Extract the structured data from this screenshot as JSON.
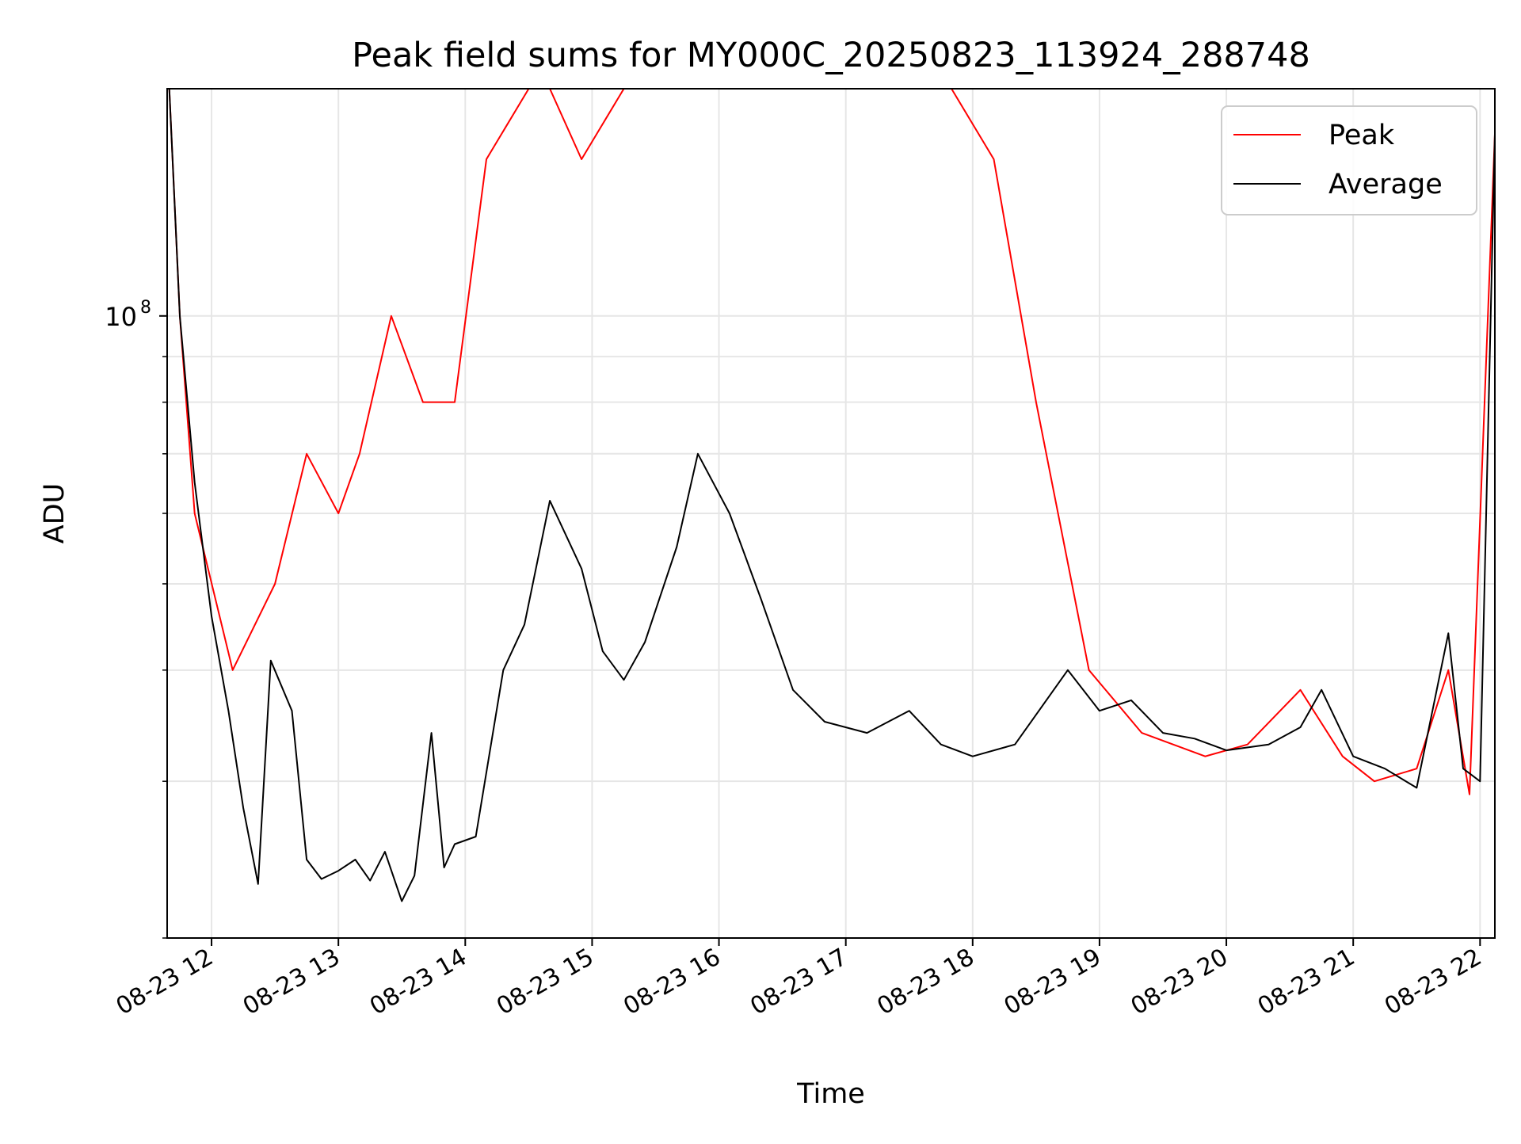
{
  "chart_data": {
    "type": "line",
    "title": "Peak field sums for MY000C_20250823_113924_288748",
    "xlabel": "Time",
    "ylabel": "ADU",
    "yscale": "log",
    "xlim": [
      "2025-08-23 11:39",
      "2025-08-23 22:07"
    ],
    "ylim": [
      20000000,
      180000000
    ],
    "grid": true,
    "legend_position": "top-right",
    "x_tick_labels": [
      "08-23 12",
      "08-23 13",
      "08-23 14",
      "08-23 15",
      "08-23 16",
      "08-23 17",
      "08-23 18",
      "08-23 19",
      "08-23 20",
      "08-23 21",
      "08-23 22"
    ],
    "y_major_ticks": [
      {
        "value": 100000000,
        "base": "10",
        "exp": "8"
      }
    ],
    "y_minor_ticks": [
      20000000,
      30000000,
      40000000,
      50000000,
      60000000,
      70000000,
      80000000,
      90000000
    ],
    "colors": {
      "Peak": "#ff0000",
      "Average": "#000000"
    },
    "series": [
      {
        "name": "Peak",
        "x": [
          "2025-08-23 11:40",
          "2025-08-23 11:45",
          "2025-08-23 11:52",
          "2025-08-23 12:10",
          "2025-08-23 12:30",
          "2025-08-23 12:45",
          "2025-08-23 13:00",
          "2025-08-23 13:10",
          "2025-08-23 13:25",
          "2025-08-23 13:40",
          "2025-08-23 13:55",
          "2025-08-23 14:10",
          "2025-08-23 14:30",
          "2025-08-23 14:40",
          "2025-08-23 14:55",
          "2025-08-23 15:15",
          "2025-08-23 15:35",
          "2025-08-23 15:50",
          "2025-08-23 16:00",
          "2025-08-23 16:15",
          "2025-08-23 16:45",
          "2025-08-23 17:00",
          "2025-08-23 17:30",
          "2025-08-23 17:50",
          "2025-08-23 18:10",
          "2025-08-23 18:30",
          "2025-08-23 18:55",
          "2025-08-23 19:20",
          "2025-08-23 19:50",
          "2025-08-23 20:10",
          "2025-08-23 20:35",
          "2025-08-23 20:55",
          "2025-08-23 21:10",
          "2025-08-23 21:30",
          "2025-08-23 21:45",
          "2025-08-23 21:55",
          "2025-08-23 22:07"
        ],
        "y": [
          180000000,
          100000000,
          60000000,
          40000000,
          50000000,
          70000000,
          60000000,
          70000000,
          100000000,
          80000000,
          80000000,
          150000000,
          180000000,
          180000000,
          150000000,
          180000000,
          180000000,
          180000000,
          180000000,
          180000000,
          180000000,
          180000000,
          180000000,
          180000000,
          150000000,
          80000000,
          40000000,
          34000000,
          32000000,
          33000000,
          38000000,
          32000000,
          30000000,
          31000000,
          40000000,
          29000000,
          160000000
        ]
      },
      {
        "name": "Average",
        "x": [
          "2025-08-23 11:40",
          "2025-08-23 11:45",
          "2025-08-23 11:52",
          "2025-08-23 12:00",
          "2025-08-23 12:08",
          "2025-08-23 12:15",
          "2025-08-23 12:22",
          "2025-08-23 12:28",
          "2025-08-23 12:38",
          "2025-08-23 12:45",
          "2025-08-23 12:52",
          "2025-08-23 13:00",
          "2025-08-23 13:08",
          "2025-08-23 13:15",
          "2025-08-23 13:22",
          "2025-08-23 13:30",
          "2025-08-23 13:36",
          "2025-08-23 13:44",
          "2025-08-23 13:50",
          "2025-08-23 13:55",
          "2025-08-23 14:05",
          "2025-08-23 14:18",
          "2025-08-23 14:28",
          "2025-08-23 14:40",
          "2025-08-23 14:55",
          "2025-08-23 15:05",
          "2025-08-23 15:15",
          "2025-08-23 15:25",
          "2025-08-23 15:40",
          "2025-08-23 15:50",
          "2025-08-23 16:05",
          "2025-08-23 16:20",
          "2025-08-23 16:35",
          "2025-08-23 16:50",
          "2025-08-23 17:10",
          "2025-08-23 17:30",
          "2025-08-23 17:45",
          "2025-08-23 18:00",
          "2025-08-23 18:20",
          "2025-08-23 18:45",
          "2025-08-23 19:00",
          "2025-08-23 19:15",
          "2025-08-23 19:30",
          "2025-08-23 19:45",
          "2025-08-23 20:00",
          "2025-08-23 20:20",
          "2025-08-23 20:35",
          "2025-08-23 20:45",
          "2025-08-23 21:00",
          "2025-08-23 21:15",
          "2025-08-23 21:30",
          "2025-08-23 21:45",
          "2025-08-23 21:52",
          "2025-08-23 22:00",
          "2025-08-23 22:07"
        ],
        "y": [
          180000000,
          100000000,
          65000000,
          46000000,
          36000000,
          28000000,
          23000000,
          41000000,
          36000000,
          24500000,
          23300000,
          23800000,
          24500000,
          23200000,
          25000000,
          22000000,
          23500000,
          34000000,
          24000000,
          25500000,
          26000000,
          40000000,
          45000000,
          62000000,
          52000000,
          42000000,
          39000000,
          43000000,
          55000000,
          70000000,
          60000000,
          48000000,
          38000000,
          35000000,
          34000000,
          36000000,
          33000000,
          32000000,
          33000000,
          40000000,
          36000000,
          37000000,
          34000000,
          33500000,
          32500000,
          33000000,
          34500000,
          38000000,
          32000000,
          31000000,
          29500000,
          44000000,
          31000000,
          30000000,
          160000000
        ]
      }
    ]
  }
}
